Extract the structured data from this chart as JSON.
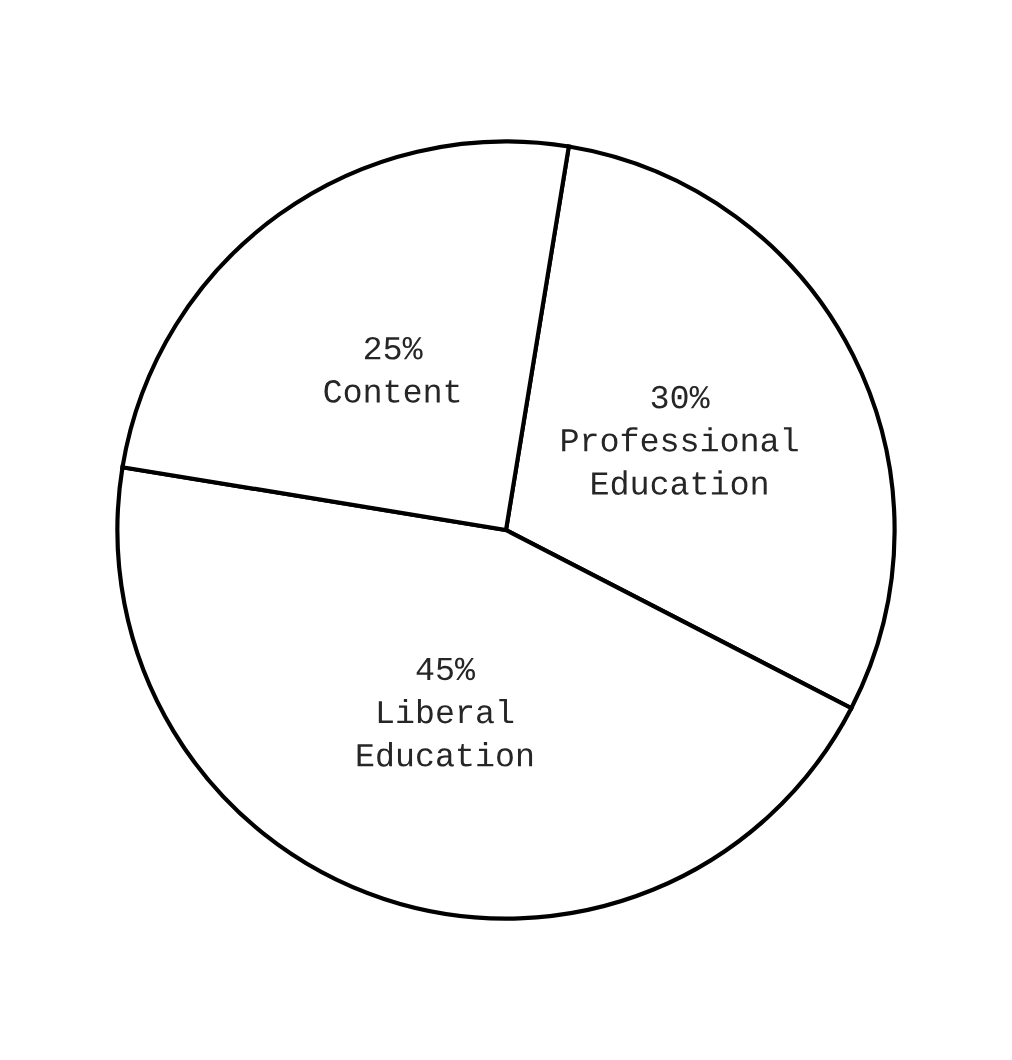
{
  "chart_data": {
    "type": "pie",
    "categories": [
      "Professional Education",
      "Liberal Education",
      "Content"
    ],
    "values": [
      30,
      45,
      25
    ],
    "value_labels": [
      "30%",
      "45%",
      "25%"
    ],
    "colors": [
      "#ffffff",
      "#ffffff",
      "#ffffff"
    ]
  }
}
